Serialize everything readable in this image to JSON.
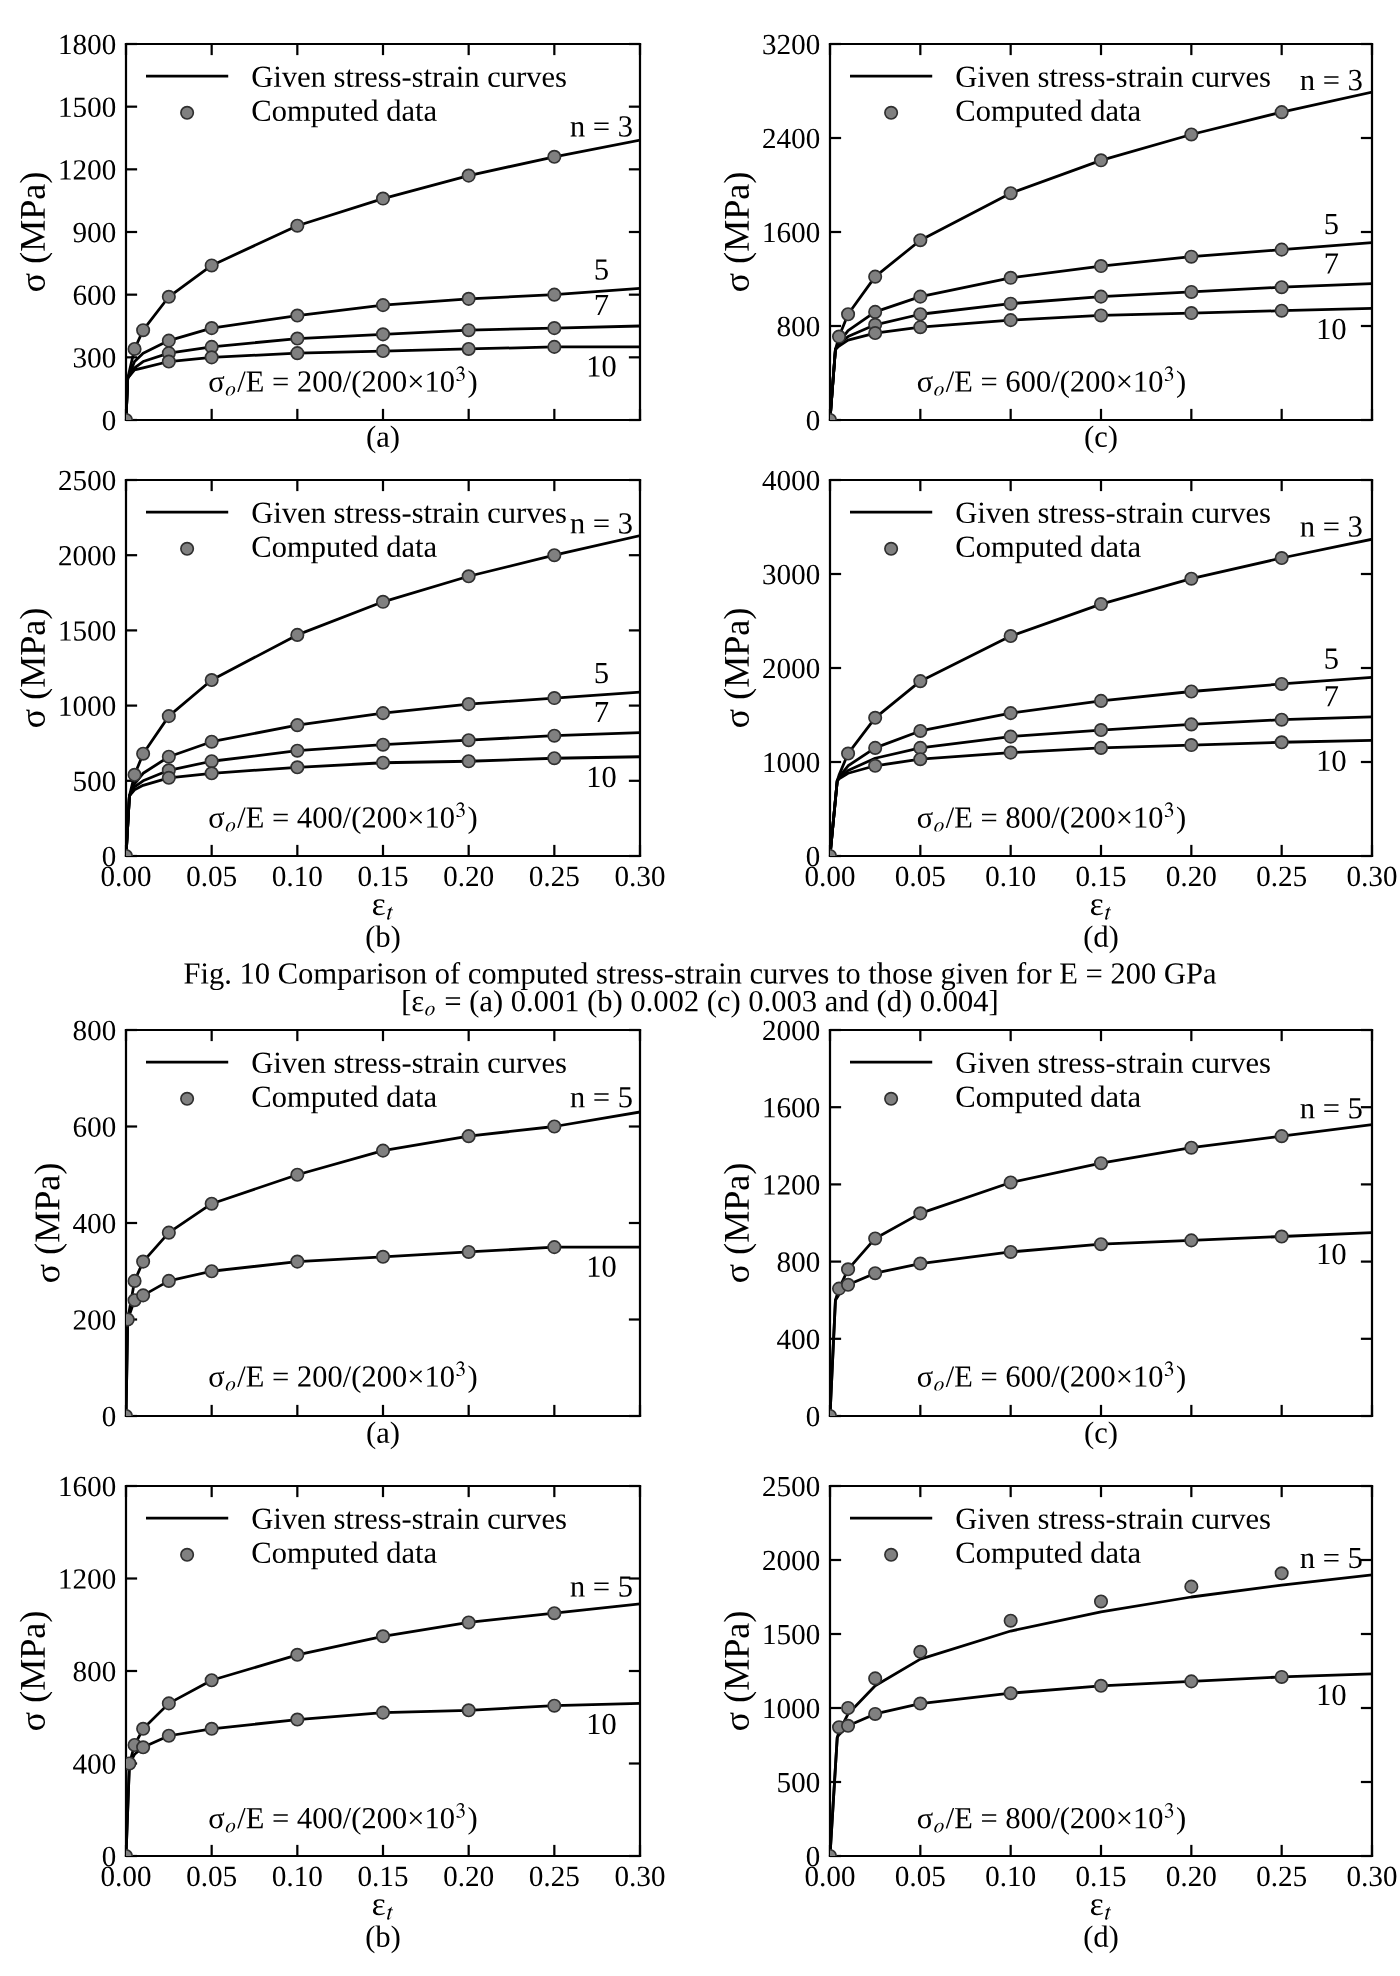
{
  "chart_data": [
    {
      "type": "line",
      "title": "(a)",
      "ylabel": "σ (MPa)",
      "xlim": [
        0,
        0.3
      ],
      "xticks": [
        0,
        0.05,
        0.1,
        0.15,
        0.2,
        0.25,
        0.3
      ],
      "ylim": [
        0,
        1800
      ],
      "yticks": [
        0,
        300,
        600,
        900,
        1200,
        1500,
        1800
      ],
      "tick_labels": "y",
      "legend": "top left",
      "annotations": [
        "σ$_{o}$/E = 200/(200×10$^{3}$)",
        "n = 3",
        "5",
        "7",
        "10"
      ],
      "series": [
        {
          "name": "Given stress-strain curves",
          "color": "#000000",
          "x": [
            0,
            0.001,
            0.005,
            0.01,
            0.025,
            0.05,
            0.1,
            0.15,
            0.2,
            0.25,
            0.3
          ],
          "values": [
            0,
            200,
            340,
            430,
            590,
            740,
            930,
            1060,
            1170,
            1260,
            1340
          ]
        },
        {
          "color": "#000000",
          "x": [
            0,
            0.001,
            0.005,
            0.01,
            0.025,
            0.05,
            0.1,
            0.15,
            0.2,
            0.25,
            0.3
          ],
          "values": [
            0,
            200,
            280,
            320,
            380,
            440,
            500,
            550,
            580,
            600,
            630
          ]
        },
        {
          "color": "#000000",
          "x": [
            0,
            0.001,
            0.005,
            0.01,
            0.025,
            0.05,
            0.1,
            0.15,
            0.2,
            0.25,
            0.3
          ],
          "values": [
            0,
            200,
            250,
            280,
            320,
            350,
            390,
            410,
            430,
            440,
            450
          ]
        },
        {
          "color": "#000000",
          "x": [
            0,
            0.001,
            0.005,
            0.01,
            0.025,
            0.05,
            0.1,
            0.15,
            0.2,
            0.25,
            0.3
          ],
          "values": [
            0,
            200,
            240,
            250,
            280,
            300,
            320,
            330,
            340,
            350,
            350
          ]
        },
        {
          "name": "Computed data",
          "type": "scatter",
          "marker": "circle",
          "color": "#808080",
          "x": [
            0,
            0.005,
            0.01,
            0.025,
            0.05,
            0.1,
            0.15,
            0.2,
            0.25
          ],
          "values": [
            0,
            340,
            430,
            590,
            740,
            930,
            1060,
            1170,
            1260
          ]
        },
        {
          "type": "scatter",
          "marker": "circle",
          "color": "#808080",
          "x": [
            0.025,
            0.05,
            0.1,
            0.15,
            0.2,
            0.25
          ],
          "values": [
            380,
            440,
            500,
            550,
            580,
            600
          ]
        },
        {
          "type": "scatter",
          "marker": "circle",
          "color": "#808080",
          "x": [
            0.025,
            0.05,
            0.1,
            0.15,
            0.2,
            0.25
          ],
          "values": [
            320,
            350,
            390,
            410,
            430,
            440
          ]
        },
        {
          "type": "scatter",
          "marker": "circle",
          "color": "#808080",
          "x": [
            0.025,
            0.05,
            0.1,
            0.15,
            0.2,
            0.25
          ],
          "values": [
            280,
            300,
            320,
            330,
            340,
            350
          ]
        }
      ]
    },
    {
      "type": "line",
      "title": "(c)",
      "ylabel": "σ (MPa)",
      "xlim": [
        0,
        0.3
      ],
      "xticks": [
        0,
        0.05,
        0.1,
        0.15,
        0.2,
        0.25,
        0.3
      ],
      "ylim": [
        0,
        3200
      ],
      "yticks": [
        0,
        800,
        1600,
        2400,
        3200
      ],
      "tick_labels": "y",
      "legend": "top left",
      "annotations": [
        "σ$_{o}$/E = 600/(200×10$^{3}$)",
        "n = 3",
        "5",
        "7",
        "10"
      ],
      "series": [
        {
          "name": "Given stress-strain curves",
          "color": "#000000",
          "x": [
            0,
            0.003,
            0.005,
            0.01,
            0.025,
            0.05,
            0.1,
            0.15,
            0.2,
            0.25,
            0.3
          ],
          "values": [
            0,
            600,
            710,
            900,
            1220,
            1530,
            1930,
            2210,
            2430,
            2620,
            2790
          ]
        },
        {
          "color": "#000000",
          "x": [
            0,
            0.003,
            0.005,
            0.01,
            0.025,
            0.05,
            0.1,
            0.15,
            0.2,
            0.25,
            0.3
          ],
          "values": [
            0,
            600,
            660,
            760,
            920,
            1050,
            1210,
            1310,
            1390,
            1450,
            1510
          ]
        },
        {
          "color": "#000000",
          "x": [
            0,
            0.003,
            0.005,
            0.01,
            0.025,
            0.05,
            0.1,
            0.15,
            0.2,
            0.25,
            0.3
          ],
          "values": [
            0,
            600,
            650,
            710,
            810,
            900,
            990,
            1050,
            1090,
            1130,
            1160
          ]
        },
        {
          "color": "#000000",
          "x": [
            0,
            0.003,
            0.005,
            0.01,
            0.025,
            0.05,
            0.1,
            0.15,
            0.2,
            0.25,
            0.3
          ],
          "values": [
            0,
            600,
            630,
            680,
            740,
            790,
            850,
            890,
            910,
            930,
            950
          ]
        },
        {
          "name": "Computed data",
          "type": "scatter",
          "marker": "circle",
          "color": "#808080",
          "x": [
            0,
            0.005,
            0.01,
            0.025,
            0.05,
            0.1,
            0.15,
            0.2,
            0.25
          ],
          "values": [
            0,
            710,
            900,
            1220,
            1530,
            1930,
            2210,
            2430,
            2620
          ]
        },
        {
          "type": "scatter",
          "marker": "circle",
          "color": "#808080",
          "x": [
            0.025,
            0.05,
            0.1,
            0.15,
            0.2,
            0.25
          ],
          "values": [
            920,
            1050,
            1210,
            1310,
            1390,
            1450
          ]
        },
        {
          "type": "scatter",
          "marker": "circle",
          "color": "#808080",
          "x": [
            0.025,
            0.05,
            0.1,
            0.15,
            0.2,
            0.25
          ],
          "values": [
            810,
            900,
            990,
            1050,
            1090,
            1130
          ]
        },
        {
          "type": "scatter",
          "marker": "circle",
          "color": "#808080",
          "x": [
            0.025,
            0.05,
            0.1,
            0.15,
            0.2,
            0.25
          ],
          "values": [
            740,
            790,
            850,
            890,
            910,
            930
          ]
        }
      ]
    },
    {
      "type": "line",
      "title": "(b)",
      "xlabel": "ε$_{t}$",
      "ylabel": "σ (MPa)",
      "xlim": [
        0,
        0.3
      ],
      "xticks": [
        {
          "value": 0,
          "label": "0.00"
        },
        {
          "value": 0.05,
          "label": "0.05"
        },
        {
          "value": 0.1,
          "label": "0.10"
        },
        {
          "value": 0.15,
          "label": "0.15"
        },
        {
          "value": 0.2,
          "label": "0.20"
        },
        {
          "value": 0.25,
          "label": "0.25"
        },
        {
          "value": 0.3,
          "label": "0.30"
        }
      ],
      "ylim": [
        0,
        2500
      ],
      "yticks": [
        0,
        500,
        1000,
        1500,
        2000,
        2500
      ],
      "legend": "top left",
      "annotations": [
        "σ$_{o}$/E = 400/(200×10$^{3}$)",
        "n = 3",
        "5",
        "7",
        "10"
      ],
      "series": [
        {
          "name": "Given stress-strain curves",
          "color": "#000000",
          "x": [
            0,
            0.002,
            0.005,
            0.01,
            0.025,
            0.05,
            0.1,
            0.15,
            0.2,
            0.25,
            0.3
          ],
          "values": [
            0,
            400,
            540,
            680,
            930,
            1170,
            1470,
            1690,
            1860,
            2000,
            2130
          ]
        },
        {
          "color": "#000000",
          "x": [
            0,
            0.002,
            0.005,
            0.01,
            0.025,
            0.05,
            0.1,
            0.15,
            0.2,
            0.25,
            0.3
          ],
          "values": [
            0,
            400,
            480,
            550,
            660,
            760,
            870,
            950,
            1010,
            1050,
            1090
          ]
        },
        {
          "color": "#000000",
          "x": [
            0,
            0.002,
            0.005,
            0.01,
            0.025,
            0.05,
            0.1,
            0.15,
            0.2,
            0.25,
            0.3
          ],
          "values": [
            0,
            400,
            460,
            500,
            570,
            630,
            700,
            740,
            770,
            800,
            820
          ]
        },
        {
          "color": "#000000",
          "x": [
            0,
            0.002,
            0.005,
            0.01,
            0.025,
            0.05,
            0.1,
            0.15,
            0.2,
            0.25,
            0.3
          ],
          "values": [
            0,
            400,
            440,
            470,
            520,
            550,
            590,
            620,
            630,
            650,
            660
          ]
        },
        {
          "name": "Computed data",
          "type": "scatter",
          "marker": "circle",
          "color": "#808080",
          "x": [
            0,
            0.005,
            0.01,
            0.025,
            0.05,
            0.1,
            0.15,
            0.2,
            0.25
          ],
          "values": [
            0,
            540,
            680,
            930,
            1170,
            1470,
            1690,
            1860,
            2000
          ]
        },
        {
          "type": "scatter",
          "marker": "circle",
          "color": "#808080",
          "x": [
            0.025,
            0.05,
            0.1,
            0.15,
            0.2,
            0.25
          ],
          "values": [
            660,
            760,
            870,
            950,
            1010,
            1050
          ]
        },
        {
          "type": "scatter",
          "marker": "circle",
          "color": "#808080",
          "x": [
            0.025,
            0.05,
            0.1,
            0.15,
            0.2,
            0.25
          ],
          "values": [
            570,
            630,
            700,
            740,
            770,
            800
          ]
        },
        {
          "type": "scatter",
          "marker": "circle",
          "color": "#808080",
          "x": [
            0.025,
            0.05,
            0.1,
            0.15,
            0.2,
            0.25
          ],
          "values": [
            520,
            550,
            590,
            620,
            630,
            650
          ]
        }
      ]
    },
    {
      "type": "line",
      "title": "(d)",
      "xlabel": "ε$_{t}$",
      "ylabel": "σ (MPa)",
      "xlim": [
        0,
        0.3
      ],
      "xticks": [
        {
          "value": 0,
          "label": "0.00"
        },
        {
          "value": 0.05,
          "label": "0.05"
        },
        {
          "value": 0.1,
          "label": "0.10"
        },
        {
          "value": 0.15,
          "label": "0.15"
        },
        {
          "value": 0.2,
          "label": "0.20"
        },
        {
          "value": 0.25,
          "label": "0.25"
        },
        {
          "value": 0.3,
          "label": "0.30"
        }
      ],
      "ylim": [
        0,
        4000
      ],
      "yticks": [
        0,
        1000,
        2000,
        3000,
        4000
      ],
      "legend": "top left",
      "annotations": [
        "σ$_{o}$/E = 800/(200×10$^{3}$)",
        "n = 3",
        "5",
        "7",
        "10",
        "Fig. 10 Comparison of computed stress-strain curves to those given for E = 200 GPa",
        "[ε$_{o}$ = (a) 0.001 (b) 0.002 (c) 0.003 and (d) 0.004]"
      ],
      "series": [
        {
          "name": "Given stress-strain curves",
          "color": "#000000",
          "x": [
            0,
            0.004,
            0.005,
            0.01,
            0.025,
            0.05,
            0.1,
            0.15,
            0.2,
            0.25,
            0.3
          ],
          "values": [
            0,
            800,
            860,
            1090,
            1470,
            1860,
            2340,
            2680,
            2950,
            3170,
            3370
          ]
        },
        {
          "color": "#000000",
          "x": [
            0,
            0.004,
            0.005,
            0.01,
            0.025,
            0.05,
            0.1,
            0.15,
            0.2,
            0.25,
            0.3
          ],
          "values": [
            0,
            800,
            840,
            960,
            1150,
            1330,
            1520,
            1650,
            1750,
            1830,
            1900
          ]
        },
        {
          "color": "#000000",
          "x": [
            0,
            0.004,
            0.005,
            0.01,
            0.025,
            0.05,
            0.1,
            0.15,
            0.2,
            0.25,
            0.3
          ],
          "values": [
            0,
            800,
            830,
            910,
            1040,
            1150,
            1270,
            1340,
            1400,
            1450,
            1480
          ]
        },
        {
          "color": "#000000",
          "x": [
            0,
            0.004,
            0.005,
            0.01,
            0.025,
            0.05,
            0.1,
            0.15,
            0.2,
            0.25,
            0.3
          ],
          "values": [
            0,
            800,
            820,
            880,
            960,
            1030,
            1100,
            1150,
            1180,
            1210,
            1230
          ]
        },
        {
          "name": "Computed data",
          "type": "scatter",
          "marker": "circle",
          "color": "#808080",
          "x": [
            0,
            0.01,
            0.025,
            0.05,
            0.1,
            0.15,
            0.2,
            0.25
          ],
          "values": [
            0,
            1090,
            1470,
            1860,
            2340,
            2680,
            2950,
            3170
          ]
        },
        {
          "type": "scatter",
          "marker": "circle",
          "color": "#808080",
          "x": [
            0.025,
            0.05,
            0.1,
            0.15,
            0.2,
            0.25
          ],
          "values": [
            1150,
            1330,
            1520,
            1650,
            1750,
            1830
          ]
        },
        {
          "type": "scatter",
          "marker": "circle",
          "color": "#808080",
          "x": [
            0.05,
            0.1,
            0.15,
            0.2,
            0.25
          ],
          "values": [
            1150,
            1270,
            1340,
            1400,
            1450
          ]
        },
        {
          "type": "scatter",
          "marker": "circle",
          "color": "#808080",
          "x": [
            0.025,
            0.05,
            0.1,
            0.15,
            0.2,
            0.25
          ],
          "values": [
            960,
            1030,
            1100,
            1150,
            1180,
            1210
          ]
        }
      ]
    },
    {
      "type": "line",
      "title": "(a)",
      "ylabel": "σ (MPa)",
      "xlim": [
        0,
        0.3
      ],
      "xticks": [
        0,
        0.05,
        0.1,
        0.15,
        0.2,
        0.25,
        0.3
      ],
      "ylim": [
        0,
        800
      ],
      "yticks": [
        0,
        200,
        400,
        600,
        800
      ],
      "tick_labels": "y",
      "legend": "top left",
      "annotations": [
        "σ$_{o}$/E = 200/(200×10$^{3}$)",
        "n = 5",
        "10"
      ],
      "series": [
        {
          "name": "Given stress-strain curves",
          "color": "#000000",
          "x": [
            0,
            0.001,
            0.005,
            0.01,
            0.025,
            0.05,
            0.1,
            0.15,
            0.2,
            0.25,
            0.3
          ],
          "values": [
            0,
            200,
            280,
            320,
            380,
            440,
            500,
            550,
            580,
            600,
            630
          ]
        },
        {
          "color": "#000000",
          "x": [
            0,
            0.001,
            0.005,
            0.01,
            0.025,
            0.05,
            0.1,
            0.15,
            0.2,
            0.25,
            0.3
          ],
          "values": [
            0,
            200,
            240,
            250,
            280,
            300,
            320,
            330,
            340,
            350,
            350
          ]
        },
        {
          "name": "Computed data",
          "type": "scatter",
          "marker": "circle",
          "color": "#808080",
          "x": [
            0,
            0.001,
            0.005,
            0.01,
            0.025,
            0.05,
            0.1,
            0.15,
            0.2,
            0.25
          ],
          "values": [
            0,
            200,
            280,
            320,
            380,
            440,
            500,
            550,
            580,
            600
          ]
        },
        {
          "type": "scatter",
          "marker": "circle",
          "color": "#808080",
          "x": [
            0.005,
            0.01,
            0.025,
            0.05,
            0.1,
            0.15,
            0.2,
            0.25
          ],
          "values": [
            240,
            250,
            280,
            300,
            320,
            330,
            340,
            350
          ]
        }
      ]
    },
    {
      "type": "line",
      "title": "(c)",
      "ylabel": "σ (MPa)",
      "xlim": [
        0,
        0.3
      ],
      "xticks": [
        0,
        0.05,
        0.1,
        0.15,
        0.2,
        0.25,
        0.3
      ],
      "ylim": [
        0,
        2000
      ],
      "yticks": [
        0,
        400,
        800,
        1200,
        1600,
        2000
      ],
      "tick_labels": "y",
      "legend": "top left",
      "annotations": [
        "σ$_{o}$/E = 600/(200×10$^{3}$)",
        "n = 5",
        "10"
      ],
      "series": [
        {
          "name": "Given stress-strain curves",
          "color": "#000000",
          "x": [
            0,
            0.003,
            0.005,
            0.01,
            0.025,
            0.05,
            0.1,
            0.15,
            0.2,
            0.25,
            0.3
          ],
          "values": [
            0,
            600,
            660,
            760,
            920,
            1050,
            1210,
            1310,
            1390,
            1450,
            1510
          ]
        },
        {
          "color": "#000000",
          "x": [
            0,
            0.003,
            0.005,
            0.01,
            0.025,
            0.05,
            0.1,
            0.15,
            0.2,
            0.25,
            0.3
          ],
          "values": [
            0,
            600,
            630,
            680,
            740,
            790,
            850,
            890,
            910,
            930,
            950
          ]
        },
        {
          "name": "Computed data",
          "type": "scatter",
          "marker": "circle",
          "color": "#808080",
          "x": [
            0,
            0.005,
            0.01,
            0.025,
            0.05,
            0.1,
            0.15,
            0.2,
            0.25
          ],
          "values": [
            0,
            660,
            760,
            920,
            1050,
            1210,
            1310,
            1390,
            1450
          ]
        },
        {
          "type": "scatter",
          "marker": "circle",
          "color": "#808080",
          "x": [
            0.01,
            0.025,
            0.05,
            0.1,
            0.15,
            0.2,
            0.25
          ],
          "values": [
            680,
            740,
            790,
            850,
            890,
            910,
            930
          ]
        }
      ]
    },
    {
      "type": "line",
      "title": "(b)",
      "xlabel": "ε$_{t}$",
      "ylabel": "σ (MPa)",
      "xlim": [
        0,
        0.3
      ],
      "xticks": [
        {
          "value": 0,
          "label": "0.00"
        },
        {
          "value": 0.05,
          "label": "0.05"
        },
        {
          "value": 0.1,
          "label": "0.10"
        },
        {
          "value": 0.15,
          "label": "0.15"
        },
        {
          "value": 0.2,
          "label": "0.20"
        },
        {
          "value": 0.25,
          "label": "0.25"
        },
        {
          "value": 0.3,
          "label": "0.30"
        }
      ],
      "ylim": [
        0,
        1600
      ],
      "yticks": [
        0,
        400,
        800,
        1200,
        1600
      ],
      "legend": "top left",
      "annotations": [
        "σ$_{o}$/E = 400/(200×10$^{3}$)",
        "n = 5",
        "10"
      ],
      "series": [
        {
          "name": "Given stress-strain curves",
          "color": "#000000",
          "x": [
            0,
            0.002,
            0.005,
            0.01,
            0.025,
            0.05,
            0.1,
            0.15,
            0.2,
            0.25,
            0.3
          ],
          "values": [
            0,
            400,
            480,
            550,
            660,
            760,
            870,
            950,
            1010,
            1050,
            1090
          ]
        },
        {
          "color": "#000000",
          "x": [
            0,
            0.002,
            0.005,
            0.01,
            0.025,
            0.05,
            0.1,
            0.15,
            0.2,
            0.25,
            0.3
          ],
          "values": [
            0,
            400,
            440,
            470,
            520,
            550,
            590,
            620,
            630,
            650,
            660
          ]
        },
        {
          "name": "Computed data",
          "type": "scatter",
          "marker": "circle",
          "color": "#808080",
          "x": [
            0,
            0.002,
            0.005,
            0.01,
            0.025,
            0.05,
            0.1,
            0.15,
            0.2,
            0.25
          ],
          "values": [
            0,
            400,
            480,
            550,
            660,
            760,
            870,
            950,
            1010,
            1050
          ]
        },
        {
          "type": "scatter",
          "marker": "circle",
          "color": "#808080",
          "x": [
            0.01,
            0.025,
            0.05,
            0.1,
            0.15,
            0.2,
            0.25
          ],
          "values": [
            470,
            520,
            550,
            590,
            620,
            630,
            650
          ]
        }
      ]
    },
    {
      "type": "line",
      "title": "(d)",
      "xlabel": "ε$_{t}$",
      "ylabel": "σ (MPa)",
      "xlim": [
        0,
        0.3
      ],
      "xticks": [
        {
          "value": 0,
          "label": "0.00"
        },
        {
          "value": 0.05,
          "label": "0.05"
        },
        {
          "value": 0.1,
          "label": "0.10"
        },
        {
          "value": 0.15,
          "label": "0.15"
        },
        {
          "value": 0.2,
          "label": "0.20"
        },
        {
          "value": 0.25,
          "label": "0.25"
        },
        {
          "value": 0.3,
          "label": "0.30"
        }
      ],
      "ylim": [
        0,
        2500
      ],
      "yticks": [
        0,
        500,
        1000,
        1500,
        2000,
        2500
      ],
      "legend": "top left",
      "annotations": [
        "σ$_{o}$/E = 800/(200×10$^{3}$)",
        "n = 5",
        "10"
      ],
      "series": [
        {
          "name": "Given stress-strain curves",
          "color": "#000000",
          "x": [
            0,
            0.004,
            0.005,
            0.01,
            0.025,
            0.05,
            0.1,
            0.15,
            0.2,
            0.25,
            0.3
          ],
          "values": [
            0,
            800,
            840,
            960,
            1150,
            1330,
            1520,
            1650,
            1750,
            1830,
            1900
          ]
        },
        {
          "color": "#000000",
          "x": [
            0,
            0.004,
            0.005,
            0.01,
            0.025,
            0.05,
            0.1,
            0.15,
            0.2,
            0.25,
            0.3
          ],
          "values": [
            0,
            800,
            820,
            880,
            960,
            1030,
            1100,
            1150,
            1180,
            1210,
            1230
          ]
        },
        {
          "name": "Computed data",
          "type": "scatter",
          "marker": "circle",
          "color": "#808080",
          "x": [
            0,
            0.005,
            0.01,
            0.025,
            0.05,
            0.1,
            0.15,
            0.2,
            0.25
          ],
          "values": [
            0,
            870,
            1000,
            1200,
            1380,
            1590,
            1720,
            1820,
            1910
          ]
        },
        {
          "type": "scatter",
          "marker": "circle",
          "color": "#808080",
          "x": [
            0.01,
            0.025,
            0.05,
            0.1,
            0.15,
            0.2,
            0.25
          ],
          "values": [
            880,
            960,
            1030,
            1100,
            1150,
            1180,
            1210
          ]
        }
      ]
    }
  ]
}
